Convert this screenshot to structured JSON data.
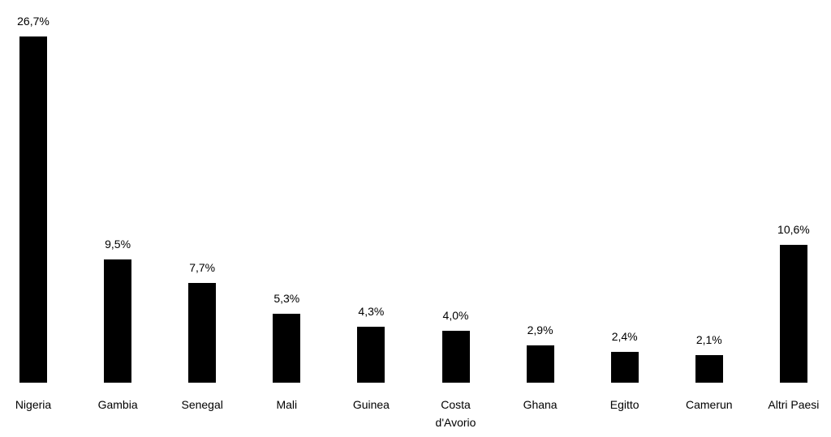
{
  "chart_data": {
    "type": "bar",
    "categories": [
      "Nigeria",
      "Gambia",
      "Senegal",
      "Mali",
      "Guinea",
      "Costa d'Avorio",
      "Ghana",
      "Egitto",
      "Camerun",
      "Altri Paesi"
    ],
    "values": [
      26.7,
      9.5,
      7.7,
      5.3,
      4.3,
      4.0,
      2.9,
      2.4,
      2.1,
      10.6
    ],
    "value_labels": [
      "26,7%",
      "9,5%",
      "7,7%",
      "5,3%",
      "4,3%",
      "4,0%",
      "2,9%",
      "2,4%",
      "2,1%",
      "10,6%"
    ],
    "color": "#000000"
  }
}
